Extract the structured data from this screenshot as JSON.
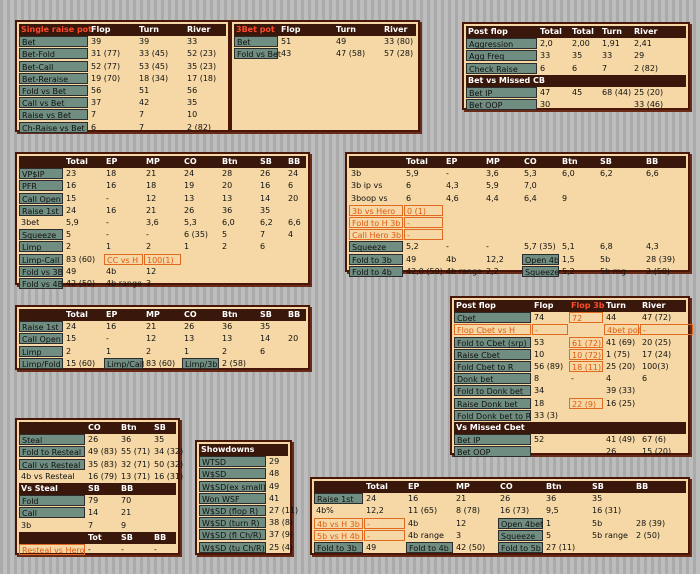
{
  "panels": [
    {
      "rows": [
        [
          "Single raise pot",
          "Flop",
          "Turn",
          "River"
        ],
        [
          "Bet",
          "39",
          "39",
          "33"
        ],
        [
          "Bet-Fold",
          "31 (77)",
          "33 (45)",
          "52 (23)"
        ],
        [
          "Bet-Call",
          "52 (77)",
          "53 (45)",
          "35 (23)"
        ],
        [
          "Bet-Reraise",
          "19 (70)",
          "18 (34)",
          "17 (18)"
        ],
        [
          "Fold vs Bet",
          "56",
          "51",
          "56"
        ],
        [
          "Call vs Bet",
          "37",
          "42",
          "35"
        ],
        [
          "Raise vs Bet",
          "7",
          "7",
          "10"
        ],
        [
          "Ch-Raise vs Bet",
          "6",
          "7",
          "2 (82)"
        ]
      ]
    },
    {
      "rows": [
        [
          "3Bet pot",
          "Flop",
          "Turn",
          "River"
        ],
        [
          "Bet",
          "51",
          "49",
          "33 (80)"
        ],
        [
          "Fold vs Bet",
          "43",
          "47 (58)",
          "57 (28)"
        ]
      ]
    },
    {
      "rows": [
        [
          "Post flop",
          "Total",
          "Total",
          "Turn",
          "River"
        ],
        [
          "Aggression",
          "2,0",
          "2,00",
          "1,91",
          "2,41"
        ],
        [
          "Agg Freq",
          "33",
          "35",
          "33",
          "29"
        ],
        [
          "Check Raise",
          "6",
          "6",
          "7",
          "2 (82)"
        ],
        [
          "Bet vs Missed CB",
          null,
          null,
          null,
          null
        ],
        [
          "Bet IP",
          "47",
          "45",
          "68 (44)",
          "25 (20)"
        ],
        [
          "Bet OOP",
          "30",
          null,
          null,
          "33 (46)"
        ]
      ]
    },
    {
      "rows": [
        [
          null,
          "Total",
          "EP",
          "MP",
          "CO",
          "Btn",
          "SB",
          "BB"
        ],
        [
          "VP$IP",
          "23",
          "18",
          "21",
          "24",
          "28",
          "26",
          "24"
        ],
        [
          "PFR",
          "16",
          "16",
          "18",
          "19",
          "20",
          "16",
          "6"
        ],
        [
          "Call Open",
          "15",
          "-",
          "12",
          "13",
          "13",
          "14",
          "20"
        ],
        [
          "Raise 1st",
          "24",
          "16",
          "21",
          "26",
          "36",
          "35",
          null
        ],
        [
          "3bet",
          "5,9",
          "-",
          "3,6",
          "5,3",
          "6,0",
          "6,2",
          "6,6"
        ],
        [
          "Squeeze",
          "5",
          "-",
          "-",
          "6 (35)",
          "5",
          "7",
          "4"
        ],
        [
          "Limp",
          "2",
          "1",
          "2",
          "1",
          "2",
          "6",
          null
        ],
        [
          "Limp-Call",
          "83 (60)",
          "CC vs H",
          "100(1)"
        ],
        [
          "Fold vs 3B",
          "49",
          "4b",
          "12"
        ],
        [
          "Fold vs 4B",
          "42 (50)",
          "4b range",
          "3"
        ]
      ]
    },
    {
      "rows": [
        [
          null,
          "Total",
          "EP",
          "MP",
          "CO",
          "Btn",
          "SB",
          "BB"
        ],
        [
          "3b",
          "5,9",
          "-",
          "3,6",
          "5,3",
          "6,0",
          "6,2",
          "6,6"
        ],
        [
          "3b ip vs",
          "6",
          "4,3",
          "5,9",
          "7,0"
        ],
        [
          "3boop vs",
          "6",
          "4,6",
          "4,4",
          "6,4",
          "9"
        ],
        [
          "3b vs Hero",
          "0 (1)"
        ],
        [
          "Fold to H 3b",
          "-"
        ],
        [
          "Call Hero 3b",
          "-"
        ],
        [
          "Squeeze",
          "5,2",
          "-",
          "-",
          "5,7 (35)",
          "5,1",
          "6,8",
          "4,3"
        ],
        [
          "Fold to 3b",
          "49",
          "4b",
          "12,2",
          "Open 4b",
          "1,5",
          "5b",
          "28 (39)"
        ],
        [
          "Fold to 4b",
          "42,0 (50)",
          "4b range",
          "2,2",
          "Squeeze",
          "5,2",
          "5b rng",
          "2 (50)"
        ]
      ]
    },
    {
      "rows": [
        [
          "Post flop",
          "Flop",
          "Flop 3b",
          "Turn",
          "River"
        ],
        [
          "Cbet",
          "74",
          "72",
          "44",
          "47 (72)"
        ],
        [
          "Flop Cbet vs H",
          "-",
          null,
          "4bet pot",
          "-"
        ],
        [
          "Fold to Cbet (srp)",
          "53",
          "61 (72)",
          "41 (69)",
          "20 (25)"
        ],
        [
          "Raise Cbet",
          "10",
          "10 (72)",
          "1 (75)",
          "17 (24)"
        ],
        [
          "Fold Cbet to R",
          "56 (89)",
          "18 (11)",
          "25 (20)",
          "100(3)"
        ],
        [
          "Donk bet",
          "8",
          "-",
          "4",
          "6"
        ],
        [
          "Fold to Donk bet",
          "34",
          null,
          "39 (33)"
        ],
        [
          "Raise Donk bet",
          "18",
          "22 (9)",
          "16 (25)"
        ],
        [
          "Fold Donk bet to R",
          "33 (3)"
        ],
        [
          "Vs Missed Cbet",
          null,
          null,
          null,
          null
        ],
        [
          "Bet IP",
          "52",
          null,
          "41 (49)",
          "67 (6)"
        ],
        [
          "Bet OOP",
          null,
          null,
          "26",
          "15 (20)"
        ]
      ]
    },
    {
      "rows": [
        [
          null,
          "Total",
          "EP",
          "MP",
          "CO",
          "Btn",
          "SB",
          "BB"
        ],
        [
          "Raise 1st",
          "24",
          "16",
          "21",
          "26",
          "36",
          "35",
          null
        ],
        [
          "Call Open",
          "15",
          "-",
          "12",
          "13",
          "13",
          "14",
          "20"
        ],
        [
          "Limp",
          "2",
          "1",
          "2",
          "1",
          "2",
          "6",
          null
        ],
        [
          "Limp/Fold",
          "15 (60)",
          "Limp/Call",
          "83 (60)",
          "Limp/3b",
          "2 (58)"
        ]
      ]
    },
    {
      "rows": [
        [
          null,
          "CO",
          "Btn",
          "SB"
        ],
        [
          "Steal",
          "26",
          "36",
          "35"
        ],
        [
          "Fold to Resteal",
          "49 (83)",
          "55 (71)",
          "34 (32)"
        ],
        [
          "Call vs Resteal",
          "35 (83)",
          "32 (71)",
          "50 (32)"
        ],
        [
          "4b vs Resteal",
          "16 (79)",
          "13 (71)",
          "16 (31)"
        ],
        [
          "Vs Steal",
          "SB",
          "BB",
          null
        ],
        [
          "Fold",
          "79",
          "70"
        ],
        [
          "Call",
          "14",
          "21"
        ],
        [
          "3b",
          "7",
          "9"
        ],
        [
          null,
          "Tot",
          "SB",
          "BB"
        ],
        [
          "Resteal vs Hero",
          "-",
          "-",
          "-"
        ]
      ]
    },
    {
      "rows": [
        [
          "Showdowns",
          null
        ],
        [
          "WTSD",
          "29"
        ],
        [
          "W$SD",
          "48"
        ],
        [
          "W$SD(ex small)",
          "49"
        ],
        [
          "Won WSF",
          "41"
        ],
        [
          "W$SD (flop R)",
          "27 (11)"
        ],
        [
          "W$SD (turn R)",
          "38 (8)"
        ],
        [
          "W$SD (fl Ch/R)",
          "37 (9)"
        ],
        [
          "W$SD (tu Ch/R)",
          "25 (4)"
        ]
      ]
    },
    {
      "rows": [
        [
          null,
          "Total",
          "EP",
          "MP",
          "CO",
          "Btn",
          "SB",
          "BB"
        ],
        [
          "Raise 1st",
          "24",
          "16",
          "21",
          "26",
          "36",
          "35",
          null
        ],
        [
          "4b%",
          "12,2",
          "11 (65)",
          "8 (78)",
          "16 (73)",
          "9,5",
          "16 (31)",
          null
        ],
        [
          "4b vs H 3b",
          "-",
          "4b",
          "12",
          "Open 4bet",
          "1",
          "5b",
          "28 (39)"
        ],
        [
          "5b vs H 4b",
          "-",
          "4b range",
          "3",
          "Squeeze",
          "5",
          "5b range",
          "2 (50)"
        ],
        [
          "Fold to 3b",
          "49",
          "Fold to 4b",
          "42 (50)",
          "Fold to 5b",
          "27 (11)"
        ]
      ]
    }
  ]
}
